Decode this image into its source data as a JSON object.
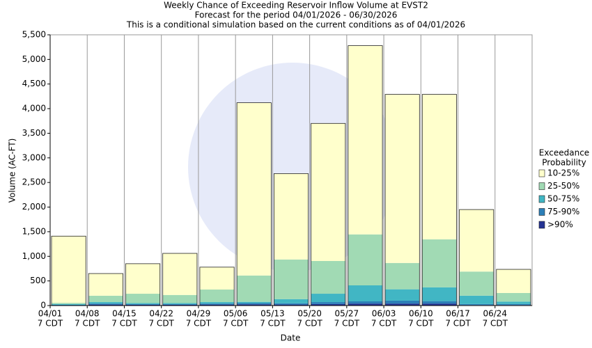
{
  "chart_data": {
    "type": "bar",
    "stacked": true,
    "title": "Weekly Chance of Exceeding Reservoir Inflow Volume at EVST2",
    "subtitle": [
      "Forecast for the period 04/01/2026 - 06/30/2026",
      "This is a conditional simulation based on the current conditions as of 04/01/2026"
    ],
    "x_label": "Date",
    "y_label": "Volume (AC-FT)",
    "categories": [
      "04/01",
      "04/08",
      "04/15",
      "04/22",
      "04/29",
      "05/06",
      "05/13",
      "05/20",
      "05/27",
      "06/03",
      "06/10",
      "06/17",
      "06/24"
    ],
    "category_time": "7 CDT",
    "legend_title": [
      "Exceedance",
      "Probability"
    ],
    "series": [
      {
        "name": ">90%",
        "color": "#253494",
        "values": [
          5,
          20,
          15,
          15,
          20,
          25,
          20,
          30,
          40,
          40,
          40,
          10,
          10
        ]
      },
      {
        "name": "75-90%",
        "color": "#2c7fb8",
        "values": [
          10,
          20,
          15,
          15,
          20,
          25,
          25,
          40,
          45,
          60,
          50,
          20,
          20
        ]
      },
      {
        "name": "50-75%",
        "color": "#41b6c4",
        "values": [
          15,
          30,
          20,
          20,
          30,
          25,
          85,
          170,
          325,
          230,
          280,
          170,
          50
        ]
      },
      {
        "name": "25-50%",
        "color": "#a1dab4",
        "values": [
          25,
          130,
          190,
          165,
          255,
          535,
          805,
          665,
          1035,
          535,
          975,
          490,
          175
        ]
      },
      {
        "name": "10-25%",
        "color": "#ffffcc",
        "values": [
          1355,
          450,
          610,
          845,
          455,
          3510,
          1745,
          2795,
          3835,
          3425,
          2945,
          1260,
          480
        ]
      }
    ],
    "ylim": [
      0,
      5500
    ],
    "yticks": [
      0,
      500,
      {
        "value": 1000,
        "label": "1,000"
      },
      {
        "value": 1500,
        "label": "1,500"
      },
      {
        "value": 2000,
        "label": "2,000"
      },
      {
        "value": 2500,
        "label": "2,500"
      },
      {
        "value": 3000,
        "label": "3,000"
      },
      {
        "value": 3500,
        "label": "3,500"
      },
      {
        "value": 4000,
        "label": "4,000"
      },
      {
        "value": 4500,
        "label": "4,500"
      },
      {
        "value": 5000,
        "label": "5,000"
      },
      {
        "value": 5500,
        "label": "5,500"
      }
    ],
    "grid": "x"
  }
}
